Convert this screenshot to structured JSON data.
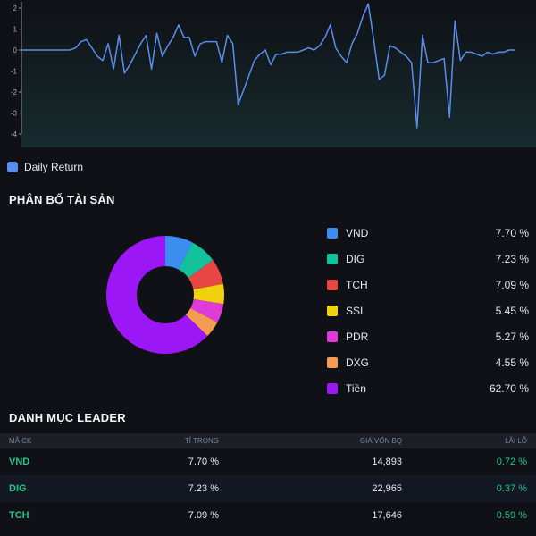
{
  "chart_data": {
    "type": "line",
    "y_ticks": [
      "2",
      "1",
      "0",
      "-1",
      "-2",
      "-3",
      "-4"
    ],
    "ylim": [
      -4,
      2
    ],
    "series": [
      {
        "name": "Daily Return",
        "color": "#5b8def",
        "values": [
          0,
          0,
          0,
          0,
          0,
          0,
          0,
          0,
          0,
          0,
          0.1,
          0.4,
          0.5,
          0.1,
          -0.3,
          -0.5,
          0.3,
          -0.9,
          0.7,
          -1.1,
          -0.7,
          -0.2,
          0.3,
          0.7,
          -0.9,
          0.8,
          -0.3,
          0.2,
          0.6,
          1.2,
          0.6,
          0.6,
          -0.3,
          0.3,
          0.4,
          0.4,
          0.4,
          -0.6,
          0.7,
          0.3,
          -2.6,
          -1.9,
          -1.2,
          -0.5,
          -0.2,
          0,
          -0.7,
          -0.2,
          -0.2,
          -0.1,
          -0.1,
          -0.1,
          0,
          0.1,
          0,
          0.2,
          0.6,
          1.2,
          0.1,
          -0.3,
          -0.6,
          0.3,
          0.8,
          1.6,
          2.2,
          0.5,
          -1.4,
          -1.2,
          0.2,
          0.1,
          -0.1,
          -0.3,
          -0.6,
          -3.7,
          0.7,
          -0.6,
          -0.6,
          -0.5,
          -0.4,
          -3.2,
          1.4,
          -0.5,
          -0.1,
          -0.1,
          -0.2,
          -0.3,
          -0.1,
          -0.2,
          -0.1,
          -0.1,
          0,
          0
        ]
      }
    ]
  },
  "legend": {
    "label": "Daily Return",
    "color": "#5b8def"
  },
  "allocation": {
    "title": "PHÂN BỔ TÀI SẢN",
    "items": [
      {
        "name": "VND",
        "pct": "7.70 %",
        "value": 7.7,
        "color": "#3b8ef0"
      },
      {
        "name": "DIG",
        "pct": "7.23 %",
        "value": 7.23,
        "color": "#13c19b"
      },
      {
        "name": "TCH",
        "pct": "7.09 %",
        "value": 7.09,
        "color": "#e84545"
      },
      {
        "name": "SSI",
        "pct": "5.45 %",
        "value": 5.45,
        "color": "#f2d20f"
      },
      {
        "name": "PDR",
        "pct": "5.27 %",
        "value": 5.27,
        "color": "#e03ad8"
      },
      {
        "name": "DXG",
        "pct": "4.55 %",
        "value": 4.55,
        "color": "#f39c52"
      },
      {
        "name": "Tiền",
        "pct": "62.70 %",
        "value": 62.7,
        "color": "#9b17f5"
      }
    ]
  },
  "leader": {
    "title": "DANH MỤC LEADER",
    "headers": {
      "ticker": "MÃ CK",
      "weight": "TỈ TRỌNG",
      "cost": "GIÁ VỐN BQ",
      "pnl": "LÃI LỖ"
    },
    "rows": [
      {
        "ticker": "VND",
        "weight": "7.70 %",
        "cost": "14,893",
        "pnl": "0.72 %"
      },
      {
        "ticker": "DIG",
        "weight": "7.23 %",
        "cost": "22,965",
        "pnl": "0.37 %"
      },
      {
        "ticker": "TCH",
        "weight": "7.09 %",
        "cost": "17,646",
        "pnl": "0.59 %"
      }
    ]
  },
  "colors": {
    "background": "#0f1116",
    "gain": "#22c58b",
    "chart_fill": "#15282a"
  }
}
